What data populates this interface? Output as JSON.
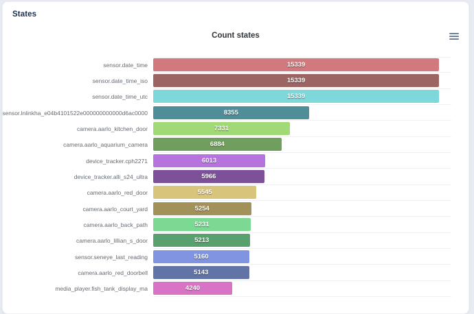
{
  "page": {
    "title": "States"
  },
  "chart": {
    "title": "Count states",
    "menu_icon": "hamburger-menu-icon"
  },
  "chart_data": {
    "type": "bar",
    "orientation": "horizontal",
    "title": "Count states",
    "categories": [
      "sensor.date_time",
      "sensor.date_time_iso",
      "sensor.date_time_utc",
      "sensor.lnlinkha_e04b4101522e000000000000d6ac0000",
      "camera.aarlo_kitchen_door",
      "camera.aarlo_aquarium_camera",
      "device_tracker.cph2271",
      "device_tracker.alli_s24_ultra",
      "camera.aarlo_red_door",
      "camera.aarlo_court_yard",
      "camera.aarlo_back_path",
      "camera.aarlo_lillian_s_door",
      "sensor.seneye_last_reading",
      "camera.aarlo_red_doorbell",
      "media_player.fish_tank_display_ma"
    ],
    "values": [
      15339,
      15339,
      15339,
      8355,
      7331,
      6884,
      6013,
      5966,
      5545,
      5254,
      5231,
      5213,
      5160,
      5143,
      4240
    ],
    "colors": [
      "#d1797d",
      "#9d6464",
      "#7ed7d9",
      "#4f8d98",
      "#a1d977",
      "#6f9e5d",
      "#b673de",
      "#7d5199",
      "#d9c47b",
      "#a3915a",
      "#7bd993",
      "#58a06e",
      "#8094e1",
      "#6273a5",
      "#d873c5"
    ],
    "xlim": [
      0,
      16000
    ],
    "value_labels": "inside-center",
    "grid": "horizontal-row-lines",
    "legend": "none"
  }
}
